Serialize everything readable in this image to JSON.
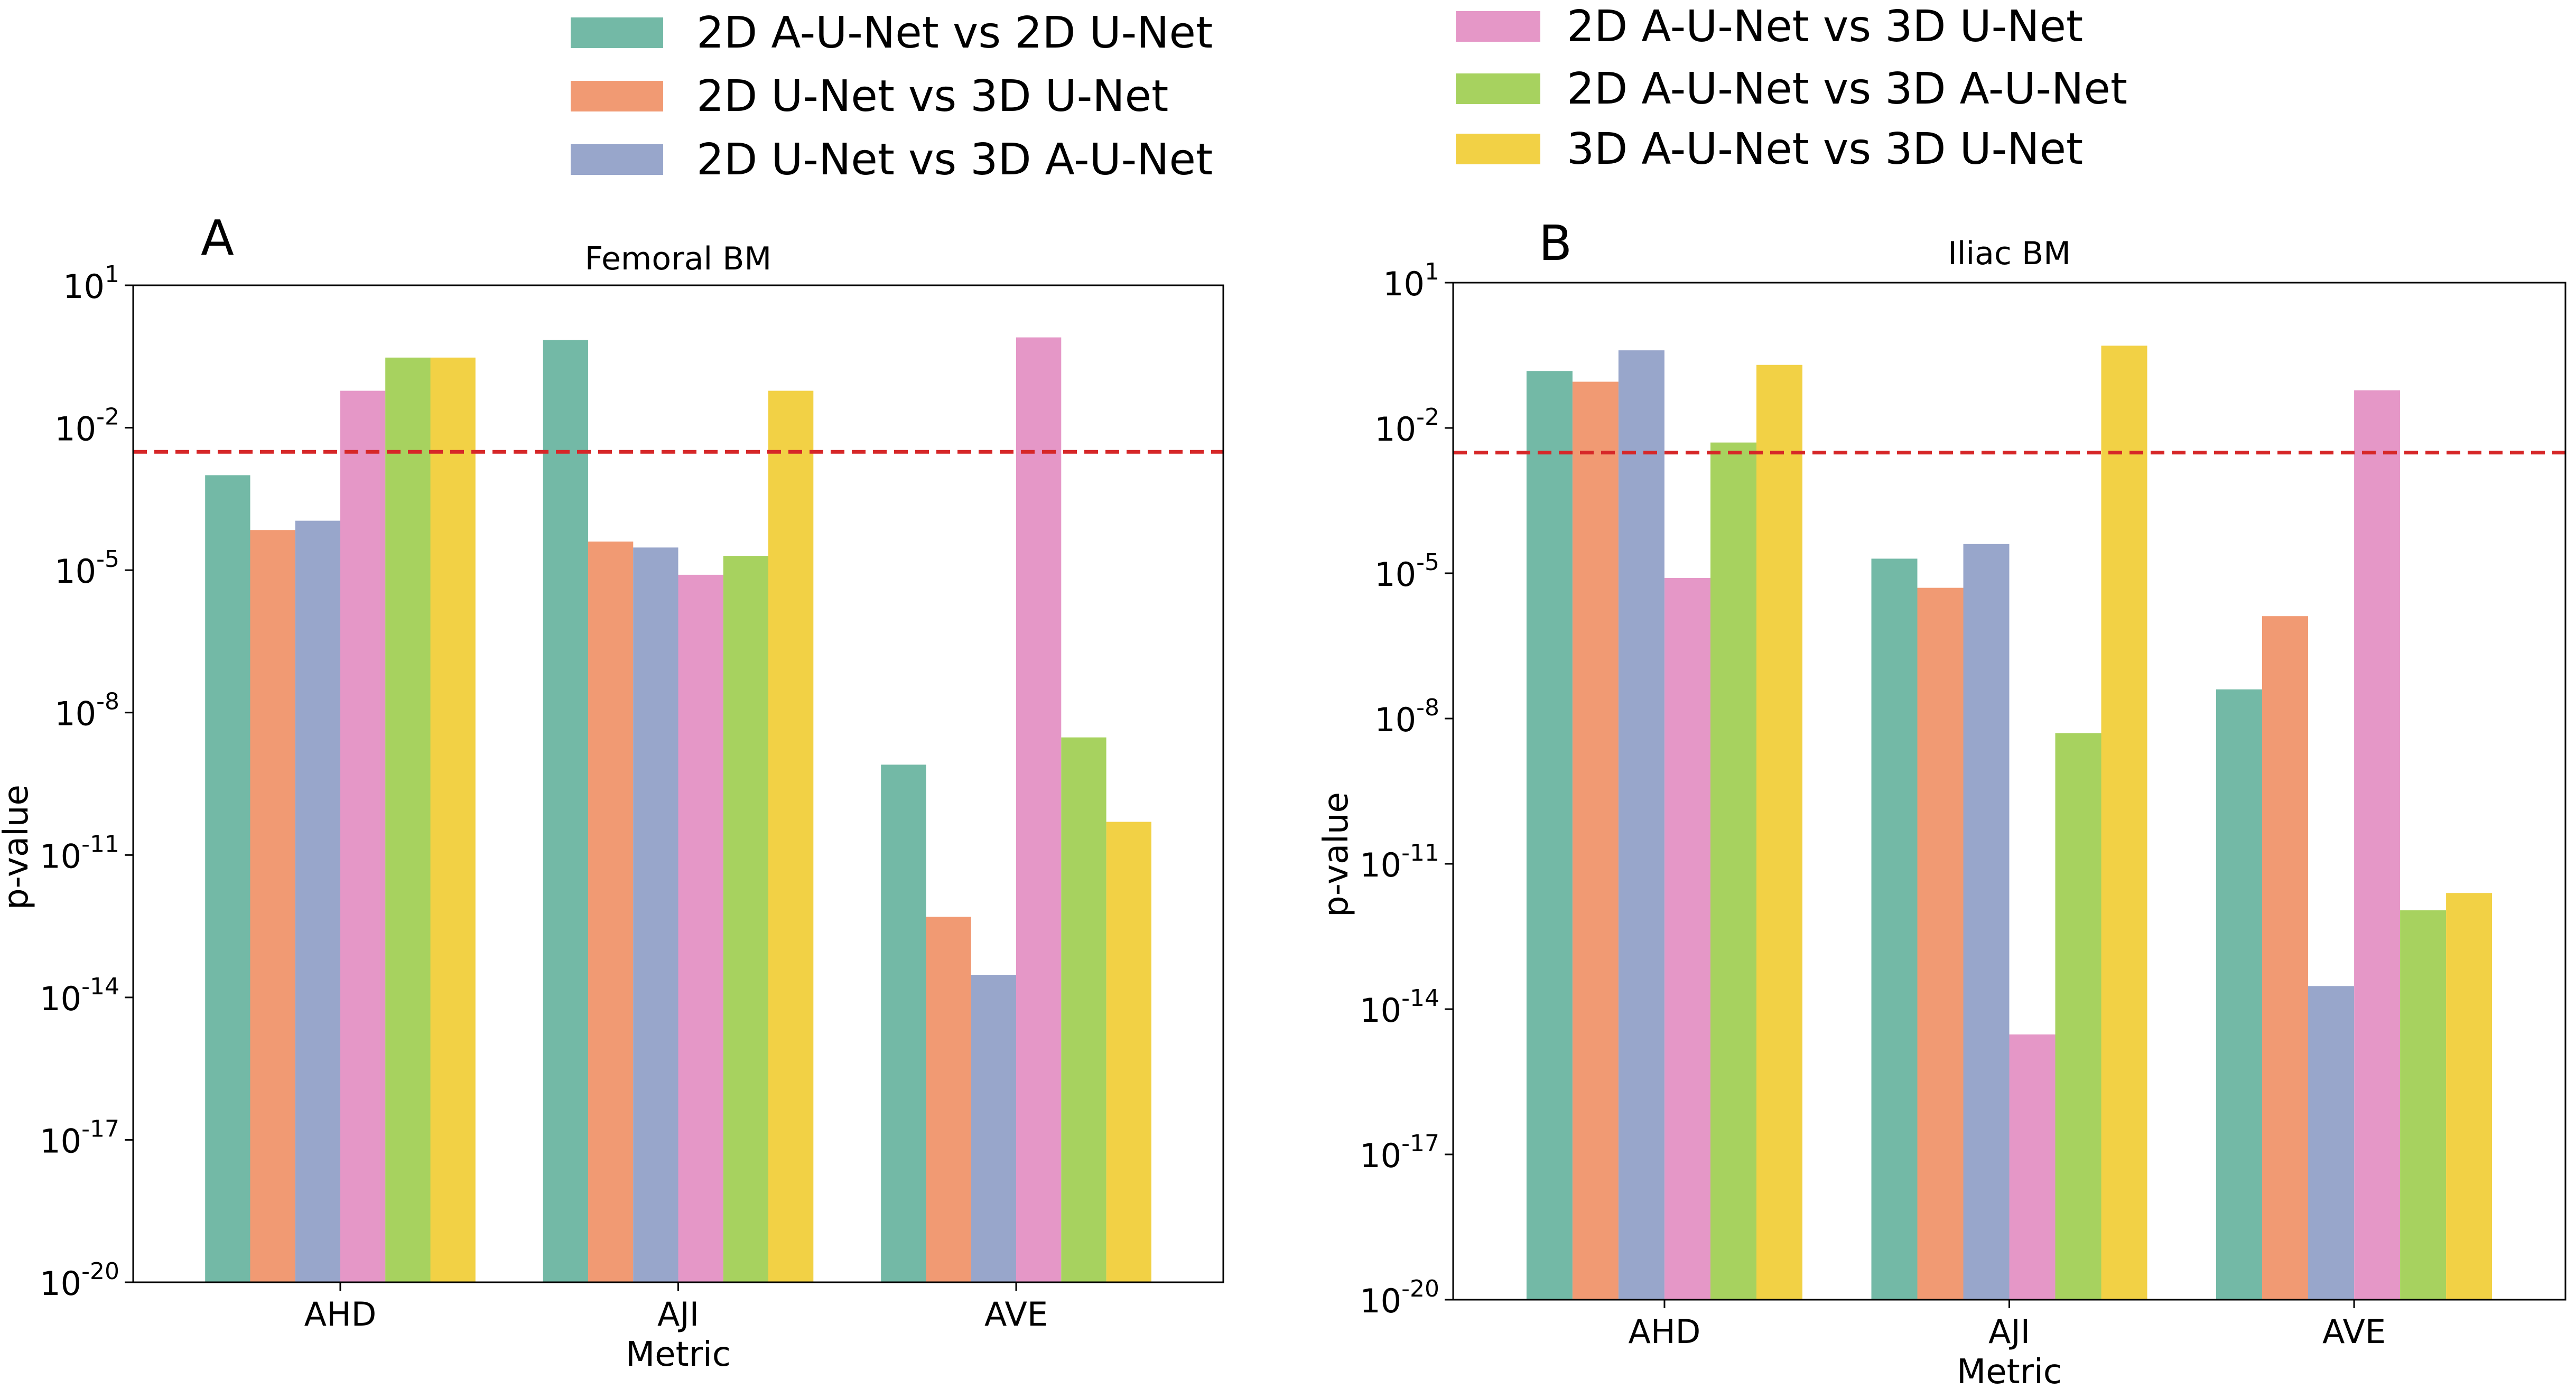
{
  "legend": {
    "left_column": [
      {
        "label": "2D A-U-Net vs 2D U-Net",
        "color": "#73b9a6"
      },
      {
        "label": "2D U-Net vs 3D U-Net",
        "color": "#f19a73"
      },
      {
        "label": "2D U-Net vs 3D A-U-Net",
        "color": "#98a6cb"
      }
    ],
    "right_column": [
      {
        "label": "2D A-U-Net vs 3D U-Net",
        "color": "#e597c7"
      },
      {
        "label": "2D A-U-Net vs 3D A-U-Net",
        "color": "#a7d25f"
      },
      {
        "label": "3D A-U-Net vs 3D U-Net",
        "color": "#f2d145"
      }
    ]
  },
  "threshold_color": "#d62728",
  "chart_data": [
    {
      "panel": "A",
      "type": "bar",
      "title": "Femoral BM",
      "xlabel": "Metric",
      "ylabel": "p-value",
      "yscale": "log",
      "ylim_exponent": [
        -20,
        1
      ],
      "yticks": [
        {
          "exp": "1",
          "value": 10
        },
        {
          "exp": "-2",
          "value": 0.01
        },
        {
          "exp": "-5",
          "value": 1e-05
        },
        {
          "exp": "-8",
          "value": 1e-08
        },
        {
          "exp": "-11",
          "value": 1e-11
        },
        {
          "exp": "-14",
          "value": 1e-14
        },
        {
          "exp": "-17",
          "value": 1e-17
        },
        {
          "exp": "-20",
          "value": 1e-20
        }
      ],
      "threshold": 0.0031,
      "categories": [
        "AHD",
        "AJI",
        "AVE"
      ],
      "series": [
        {
          "name": "2D A-U-Net vs 2D U-Net",
          "values": [
            0.001,
            0.7,
            8e-10
          ]
        },
        {
          "name": "2D U-Net vs 3D U-Net",
          "values": [
            7e-05,
            4e-05,
            5e-13
          ]
        },
        {
          "name": "2D U-Net vs 3D A-U-Net",
          "values": [
            0.00011,
            3e-05,
            3e-14
          ]
        },
        {
          "name": "2D A-U-Net vs 3D U-Net",
          "values": [
            0.06,
            8e-06,
            0.8
          ]
        },
        {
          "name": "2D A-U-Net vs 3D A-U-Net",
          "values": [
            0.3,
            2e-05,
            3e-09
          ]
        },
        {
          "name": "3D A-U-Net vs 3D U-Net",
          "values": [
            0.3,
            0.06,
            5e-11
          ]
        }
      ]
    },
    {
      "panel": "B",
      "type": "bar",
      "title": "Iliac BM",
      "xlabel": "Metric",
      "ylabel": "p-value",
      "yscale": "log",
      "ylim_exponent": [
        -20,
        1
      ],
      "yticks": [
        {
          "exp": "1",
          "value": 10
        },
        {
          "exp": "-2",
          "value": 0.01
        },
        {
          "exp": "-5",
          "value": 1e-05
        },
        {
          "exp": "-8",
          "value": 1e-08
        },
        {
          "exp": "-11",
          "value": 1e-11
        },
        {
          "exp": "-14",
          "value": 1e-14
        },
        {
          "exp": "-17",
          "value": 1e-17
        },
        {
          "exp": "-20",
          "value": 1e-20
        }
      ],
      "threshold": 0.0031,
      "categories": [
        "AHD",
        "AJI",
        "AVE"
      ],
      "series": [
        {
          "name": "2D A-U-Net vs 2D U-Net",
          "values": [
            0.15,
            2e-05,
            4e-08
          ]
        },
        {
          "name": "2D U-Net vs 3D U-Net",
          "values": [
            0.09,
            5e-06,
            1.3e-06
          ]
        },
        {
          "name": "2D U-Net vs 3D A-U-Net",
          "values": [
            0.4,
            4e-05,
            3e-14
          ]
        },
        {
          "name": "2D A-U-Net vs 3D U-Net",
          "values": [
            8e-06,
            3e-15,
            0.06
          ]
        },
        {
          "name": "2D A-U-Net vs 3D A-U-Net",
          "values": [
            0.005,
            5e-09,
            1.1e-12
          ]
        },
        {
          "name": "3D A-U-Net vs 3D U-Net",
          "values": [
            0.2,
            0.5,
            2.5e-12
          ]
        }
      ]
    }
  ]
}
